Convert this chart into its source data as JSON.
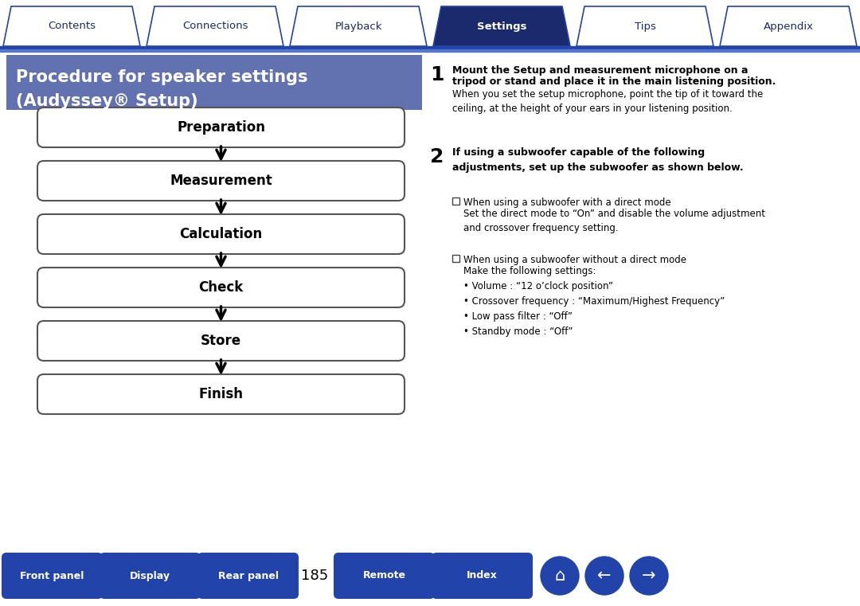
{
  "title_line1": "Procedure for speaker settings",
  "title_line2": "(Audyssey® Setup)",
  "title_bg": "#6272b0",
  "title_color": "#ffffff",
  "flow_steps": [
    "Preparation",
    "Measurement",
    "Calculation",
    "Check",
    "Store",
    "Finish"
  ],
  "tab_labels": [
    "Contents",
    "Connections",
    "Playback",
    "Settings",
    "Tips",
    "Appendix"
  ],
  "tab_active": 3,
  "tab_active_bg": "#1a2a6c",
  "tab_inactive_bg": "#ffffff",
  "tab_active_color": "#ffffff",
  "tab_inactive_color": "#1a2a6c",
  "tab_border_color": "#2244aa",
  "bottom_buttons_left": [
    "Front panel",
    "Display",
    "Rear panel"
  ],
  "bottom_buttons_right": [
    "Remote",
    "Index"
  ],
  "bottom_btn_bg": "#2244aa",
  "bottom_btn_color": "#ffffff",
  "page_number": "185",
  "bg_color": "#ffffff",
  "step1_bold_line1": "Mount the Setup and measurement microphone on a",
  "step1_bold_line2": "tripod or stand and place it in the main listening position.",
  "step1_normal": "When you set the setup microphone, point the tip of it toward the\nceiling, at the height of your ears in your listening position.",
  "step2_bold": "If using a subwoofer capable of the following\nadjustments, set up the subwoofer as shown below.",
  "bullet1_bold": "When using a subwoofer with a direct mode",
  "bullet1_text": "Set the direct mode to “On” and disable the volume adjustment\nand crossover frequency setting.",
  "bullet2_bold": "When using a subwoofer without a direct mode",
  "bullet2_text": "Make the following settings:\n• Volume : “12 o’clock position”\n• Crossover frequency : “Maximum/Highest Frequency”\n• Low pass filter : “Off”\n• Standby mode : “Off”",
  "divider_color": "#2244aa",
  "divider2_color": "#4466cc"
}
